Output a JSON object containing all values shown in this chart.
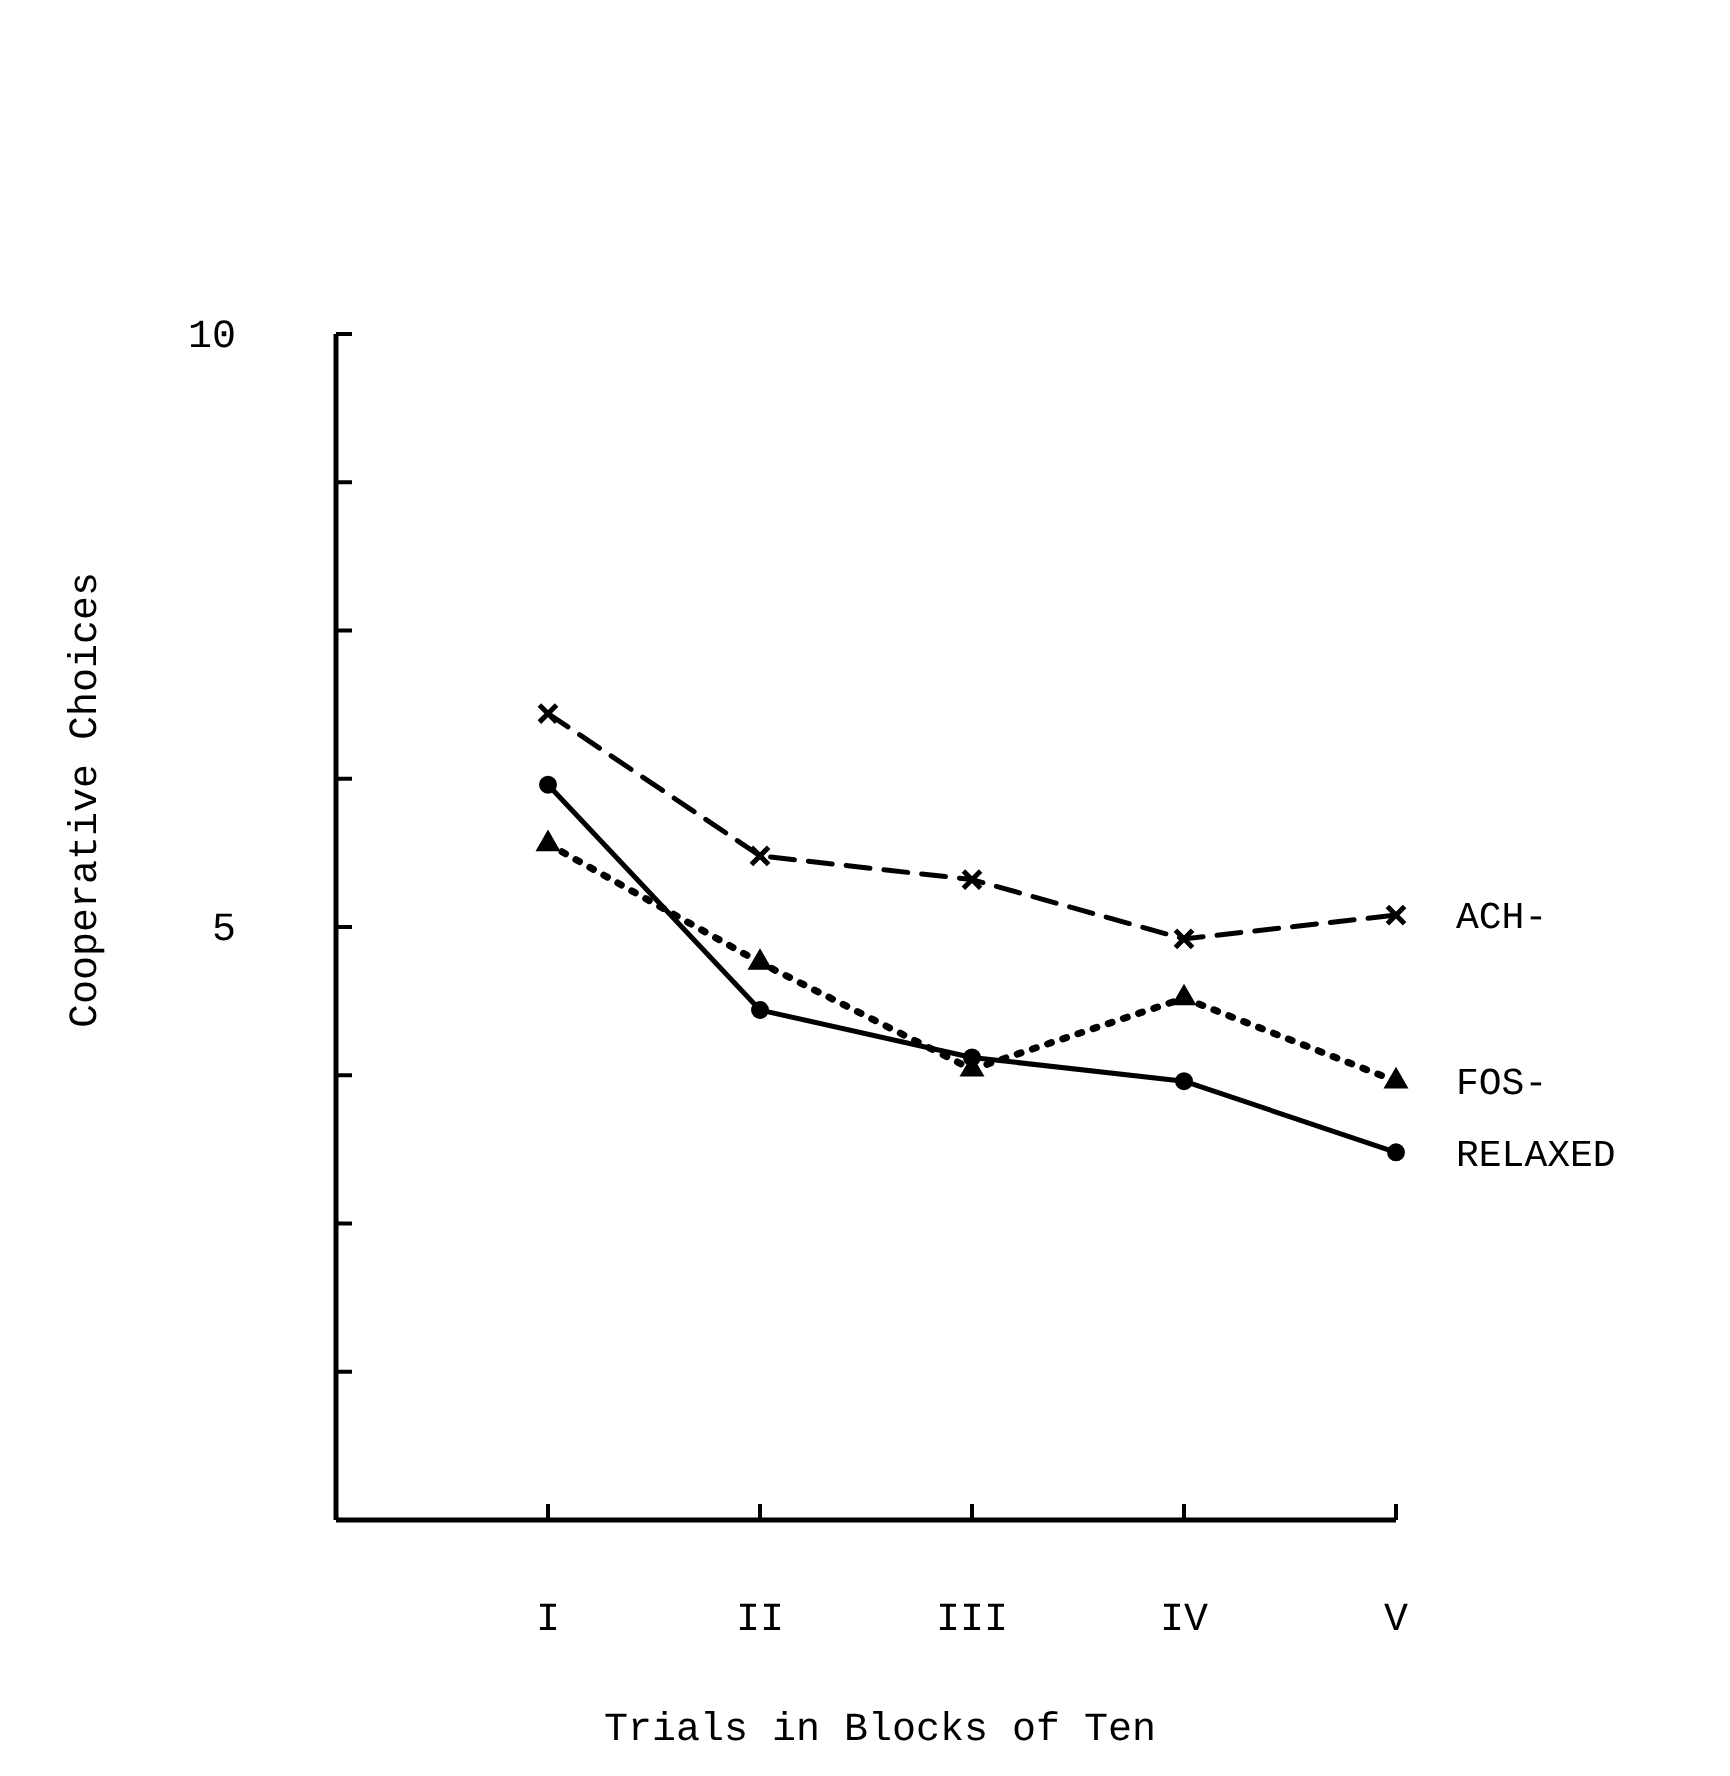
{
  "chart_data": {
    "type": "line",
    "xlabel": "Trials in Blocks of Ten",
    "ylabel": "Cooperative Choices",
    "categories": [
      "I",
      "II",
      "III",
      "IV",
      "V"
    ],
    "ylim": [
      0,
      10
    ],
    "yticks": [
      {
        "value": 0,
        "label": null
      },
      {
        "value": 1.25,
        "label": null
      },
      {
        "value": 2.5,
        "label": null
      },
      {
        "value": 3.75,
        "label": null
      },
      5,
      {
        "value": 6.25,
        "label": null
      },
      {
        "value": 7.5,
        "label": null
      },
      {
        "value": 8.75,
        "label": null
      },
      10
    ],
    "grid": false,
    "series": [
      {
        "name": "ACH-",
        "color": "#000000",
        "line_style": "dashed",
        "marker": "cross",
        "values": [
          6.8,
          5.6,
          5.4,
          4.9,
          5.1
        ]
      },
      {
        "name": "FOS-",
        "color": "#000000",
        "line_style": "dotted",
        "marker": "triangle",
        "values": [
          5.7,
          4.7,
          3.8,
          4.4,
          3.7
        ]
      },
      {
        "name": "RELAXED",
        "color": "#000000",
        "line_style": "solid",
        "marker": "circle",
        "values": [
          6.2,
          4.3,
          3.9,
          3.7,
          3.1
        ]
      }
    ]
  }
}
